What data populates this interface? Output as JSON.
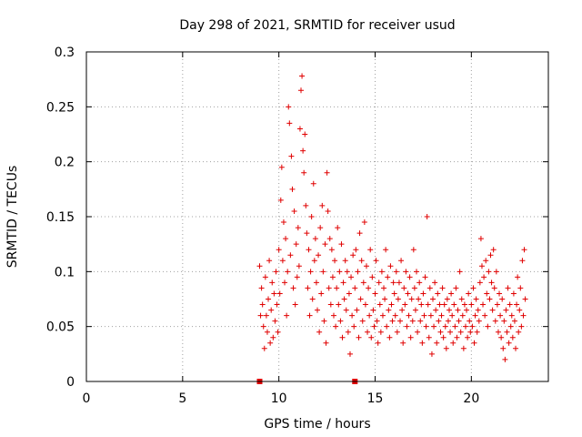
{
  "chart_data": {
    "type": "scatter",
    "title": "Day 298 of 2021, SRMTID for receiver usud",
    "xlabel": "GPS time / hours",
    "ylabel": "SRMTID / TECUs",
    "xlim": [
      0,
      24
    ],
    "ylim": [
      0,
      0.3
    ],
    "grid": true,
    "marker": "+",
    "color": "#e00000",
    "x_ticks": [
      {
        "value": 0,
        "label": "0"
      },
      {
        "value": 5,
        "label": "5"
      },
      {
        "value": 10,
        "label": "10"
      },
      {
        "value": 15,
        "label": "15"
      },
      {
        "value": 20,
        "label": "20"
      }
    ],
    "y_ticks": [
      {
        "value": 0,
        "label": "0"
      },
      {
        "value": 0.05,
        "label": "0.05"
      },
      {
        "value": 0.1,
        "label": "0.1"
      },
      {
        "value": 0.15,
        "label": "0.15"
      },
      {
        "value": 0.2,
        "label": "0.2"
      },
      {
        "value": 0.25,
        "label": "0.25"
      },
      {
        "value": 0.3,
        "label": "0.3"
      }
    ],
    "gap_markers": [
      {
        "x": 9.0,
        "y": 0
      },
      {
        "x": 13.95,
        "y": 0
      }
    ],
    "series": [
      {
        "name": "SRMTID",
        "points": [
          [
            9.0,
            0.105
          ],
          [
            9.05,
            0.06
          ],
          [
            9.1,
            0.085
          ],
          [
            9.15,
            0.07
          ],
          [
            9.2,
            0.05
          ],
          [
            9.25,
            0.03
          ],
          [
            9.3,
            0.095
          ],
          [
            9.35,
            0.06
          ],
          [
            9.4,
            0.045
          ],
          [
            9.45,
            0.075
          ],
          [
            9.5,
            0.11
          ],
          [
            9.55,
            0.035
          ],
          [
            9.6,
            0.065
          ],
          [
            9.65,
            0.09
          ],
          [
            9.7,
            0.04
          ],
          [
            9.75,
            0.08
          ],
          [
            9.8,
            0.055
          ],
          [
            9.85,
            0.1
          ],
          [
            9.9,
            0.07
          ],
          [
            9.95,
            0.045
          ],
          [
            10.0,
            0.12
          ],
          [
            10.05,
            0.08
          ],
          [
            10.1,
            0.165
          ],
          [
            10.15,
            0.195
          ],
          [
            10.2,
            0.11
          ],
          [
            10.25,
            0.145
          ],
          [
            10.3,
            0.09
          ],
          [
            10.35,
            0.13
          ],
          [
            10.4,
            0.06
          ],
          [
            10.45,
            0.1
          ],
          [
            10.5,
            0.25
          ],
          [
            10.55,
            0.235
          ],
          [
            10.6,
            0.115
          ],
          [
            10.65,
            0.205
          ],
          [
            10.7,
            0.175
          ],
          [
            10.75,
            0.085
          ],
          [
            10.8,
            0.155
          ],
          [
            10.85,
            0.07
          ],
          [
            10.9,
            0.125
          ],
          [
            10.95,
            0.095
          ],
          [
            11.0,
            0.14
          ],
          [
            11.05,
            0.105
          ],
          [
            11.1,
            0.23
          ],
          [
            11.15,
            0.265
          ],
          [
            11.2,
            0.278
          ],
          [
            11.25,
            0.21
          ],
          [
            11.3,
            0.19
          ],
          [
            11.35,
            0.225
          ],
          [
            11.4,
            0.16
          ],
          [
            11.45,
            0.135
          ],
          [
            11.5,
            0.085
          ],
          [
            11.55,
            0.12
          ],
          [
            11.6,
            0.06
          ],
          [
            11.65,
            0.1
          ],
          [
            11.7,
            0.15
          ],
          [
            11.75,
            0.075
          ],
          [
            11.8,
            0.18
          ],
          [
            11.85,
            0.11
          ],
          [
            11.9,
            0.13
          ],
          [
            11.95,
            0.09
          ],
          [
            12.0,
            0.065
          ],
          [
            12.05,
            0.115
          ],
          [
            12.1,
            0.045
          ],
          [
            12.15,
            0.14
          ],
          [
            12.2,
            0.08
          ],
          [
            12.25,
            0.16
          ],
          [
            12.3,
            0.1
          ],
          [
            12.35,
            0.055
          ],
          [
            12.4,
            0.125
          ],
          [
            12.45,
            0.035
          ],
          [
            12.5,
            0.19
          ],
          [
            12.55,
            0.155
          ],
          [
            12.6,
            0.085
          ],
          [
            12.65,
            0.13
          ],
          [
            12.7,
            0.07
          ],
          [
            12.75,
            0.12
          ],
          [
            12.8,
            0.095
          ],
          [
            12.85,
            0.06
          ],
          [
            12.9,
            0.11
          ],
          [
            12.95,
            0.05
          ],
          [
            13.0,
            0.085
          ],
          [
            13.05,
            0.14
          ],
          [
            13.1,
            0.07
          ],
          [
            13.15,
            0.1
          ],
          [
            13.2,
            0.055
          ],
          [
            13.25,
            0.125
          ],
          [
            13.3,
            0.04
          ],
          [
            13.35,
            0.09
          ],
          [
            13.4,
            0.075
          ],
          [
            13.45,
            0.11
          ],
          [
            13.5,
            0.065
          ],
          [
            13.55,
            0.1
          ],
          [
            13.6,
            0.045
          ],
          [
            13.65,
            0.08
          ],
          [
            13.7,
            0.025
          ],
          [
            13.75,
            0.095
          ],
          [
            13.8,
            0.06
          ],
          [
            13.85,
            0.115
          ],
          [
            13.9,
            0.05
          ],
          [
            13.95,
            0.085
          ],
          [
            14.0,
            0.12
          ],
          [
            14.05,
            0.065
          ],
          [
            14.1,
            0.1
          ],
          [
            14.15,
            0.04
          ],
          [
            14.2,
            0.135
          ],
          [
            14.25,
            0.075
          ],
          [
            14.3,
            0.11
          ],
          [
            14.35,
            0.055
          ],
          [
            14.4,
            0.09
          ],
          [
            14.45,
            0.145
          ],
          [
            14.5,
            0.07
          ],
          [
            14.55,
            0.105
          ],
          [
            14.6,
            0.045
          ],
          [
            14.65,
            0.085
          ],
          [
            14.7,
            0.06
          ],
          [
            14.75,
            0.12
          ],
          [
            14.8,
            0.04
          ],
          [
            14.85,
            0.095
          ],
          [
            14.9,
            0.065
          ],
          [
            14.95,
            0.05
          ],
          [
            15.0,
            0.08
          ],
          [
            15.05,
            0.11
          ],
          [
            15.1,
            0.055
          ],
          [
            15.15,
            0.035
          ],
          [
            15.2,
            0.09
          ],
          [
            15.25,
            0.07
          ],
          [
            15.3,
            0.045
          ],
          [
            15.35,
            0.1
          ],
          [
            15.4,
            0.06
          ],
          [
            15.45,
            0.085
          ],
          [
            15.5,
            0.075
          ],
          [
            15.55,
            0.12
          ],
          [
            15.6,
            0.05
          ],
          [
            15.65,
            0.095
          ],
          [
            15.7,
            0.065
          ],
          [
            15.75,
            0.04
          ],
          [
            15.8,
            0.105
          ],
          [
            15.85,
            0.07
          ],
          [
            15.9,
            0.055
          ],
          [
            15.95,
            0.09
          ],
          [
            16.0,
            0.08
          ],
          [
            16.05,
            0.06
          ],
          [
            16.1,
            0.1
          ],
          [
            16.15,
            0.045
          ],
          [
            16.2,
            0.075
          ],
          [
            16.25,
            0.09
          ],
          [
            16.3,
            0.055
          ],
          [
            16.35,
            0.11
          ],
          [
            16.4,
            0.065
          ],
          [
            16.45,
            0.035
          ],
          [
            16.5,
            0.085
          ],
          [
            16.55,
            0.07
          ],
          [
            16.6,
            0.1
          ],
          [
            16.65,
            0.05
          ],
          [
            16.7,
            0.08
          ],
          [
            16.75,
            0.06
          ],
          [
            16.8,
            0.095
          ],
          [
            16.85,
            0.04
          ],
          [
            16.9,
            0.075
          ],
          [
            16.95,
            0.055
          ],
          [
            17.0,
            0.12
          ],
          [
            17.05,
            0.085
          ],
          [
            17.1,
            0.065
          ],
          [
            17.15,
            0.1
          ],
          [
            17.2,
            0.045
          ],
          [
            17.25,
            0.075
          ],
          [
            17.3,
            0.09
          ],
          [
            17.35,
            0.055
          ],
          [
            17.4,
            0.07
          ],
          [
            17.45,
            0.035
          ],
          [
            17.5,
            0.08
          ],
          [
            17.55,
            0.06
          ],
          [
            17.6,
            0.095
          ],
          [
            17.65,
            0.05
          ],
          [
            17.7,
            0.15
          ],
          [
            17.75,
            0.07
          ],
          [
            17.8,
            0.04
          ],
          [
            17.85,
            0.085
          ],
          [
            17.9,
            0.06
          ],
          [
            17.95,
            0.025
          ],
          [
            18.0,
            0.075
          ],
          [
            18.05,
            0.05
          ],
          [
            18.1,
            0.09
          ],
          [
            18.15,
            0.065
          ],
          [
            18.2,
            0.035
          ],
          [
            18.25,
            0.08
          ],
          [
            18.3,
            0.055
          ],
          [
            18.35,
            0.07
          ],
          [
            18.4,
            0.045
          ],
          [
            18.45,
            0.06
          ],
          [
            18.5,
            0.085
          ],
          [
            18.55,
            0.04
          ],
          [
            18.6,
            0.07
          ],
          [
            18.65,
            0.05
          ],
          [
            18.7,
            0.03
          ],
          [
            18.75,
            0.075
          ],
          [
            18.8,
            0.055
          ],
          [
            18.85,
            0.065
          ],
          [
            18.9,
            0.045
          ],
          [
            18.95,
            0.08
          ],
          [
            19.0,
            0.06
          ],
          [
            19.05,
            0.035
          ],
          [
            19.1,
            0.07
          ],
          [
            19.15,
            0.05
          ],
          [
            19.2,
            0.085
          ],
          [
            19.25,
            0.04
          ],
          [
            19.3,
            0.065
          ],
          [
            19.35,
            0.055
          ],
          [
            19.4,
            0.1
          ],
          [
            19.45,
            0.045
          ],
          [
            19.5,
            0.075
          ],
          [
            19.55,
            0.06
          ],
          [
            19.6,
            0.03
          ],
          [
            19.65,
            0.07
          ],
          [
            19.7,
            0.05
          ],
          [
            19.75,
            0.065
          ],
          [
            19.8,
            0.04
          ],
          [
            19.85,
            0.08
          ],
          [
            19.9,
            0.055
          ],
          [
            19.95,
            0.045
          ],
          [
            20.0,
            0.07
          ],
          [
            20.05,
            0.05
          ],
          [
            20.1,
            0.085
          ],
          [
            20.15,
            0.035
          ],
          [
            20.2,
            0.06
          ],
          [
            20.25,
            0.075
          ],
          [
            20.3,
            0.045
          ],
          [
            20.35,
            0.065
          ],
          [
            20.4,
            0.055
          ],
          [
            20.45,
            0.09
          ],
          [
            20.5,
            0.13
          ],
          [
            20.55,
            0.105
          ],
          [
            20.6,
            0.07
          ],
          [
            20.65,
            0.095
          ],
          [
            20.7,
            0.06
          ],
          [
            20.75,
            0.11
          ],
          [
            20.8,
            0.08
          ],
          [
            20.85,
            0.05
          ],
          [
            20.9,
            0.1
          ],
          [
            20.95,
            0.075
          ],
          [
            21.0,
            0.115
          ],
          [
            21.05,
            0.09
          ],
          [
            21.1,
            0.065
          ],
          [
            21.15,
            0.12
          ],
          [
            21.2,
            0.085
          ],
          [
            21.25,
            0.055
          ],
          [
            21.3,
            0.1
          ],
          [
            21.35,
            0.07
          ],
          [
            21.4,
            0.045
          ],
          [
            21.45,
            0.08
          ],
          [
            21.5,
            0.06
          ],
          [
            21.55,
            0.04
          ],
          [
            21.6,
            0.075
          ],
          [
            21.65,
            0.03
          ],
          [
            21.7,
            0.055
          ],
          [
            21.75,
            0.02
          ],
          [
            21.8,
            0.065
          ],
          [
            21.85,
            0.045
          ],
          [
            21.9,
            0.085
          ],
          [
            21.95,
            0.035
          ],
          [
            22.0,
            0.07
          ],
          [
            22.05,
            0.05
          ],
          [
            22.1,
            0.06
          ],
          [
            22.15,
            0.04
          ],
          [
            22.2,
            0.08
          ],
          [
            22.25,
            0.055
          ],
          [
            22.3,
            0.03
          ],
          [
            22.35,
            0.07
          ],
          [
            22.4,
            0.095
          ],
          [
            22.45,
            0.045
          ],
          [
            22.5,
            0.065
          ],
          [
            22.55,
            0.085
          ],
          [
            22.6,
            0.05
          ],
          [
            22.65,
            0.11
          ],
          [
            22.7,
            0.06
          ],
          [
            22.75,
            0.12
          ],
          [
            22.8,
            0.075
          ]
        ]
      }
    ]
  }
}
